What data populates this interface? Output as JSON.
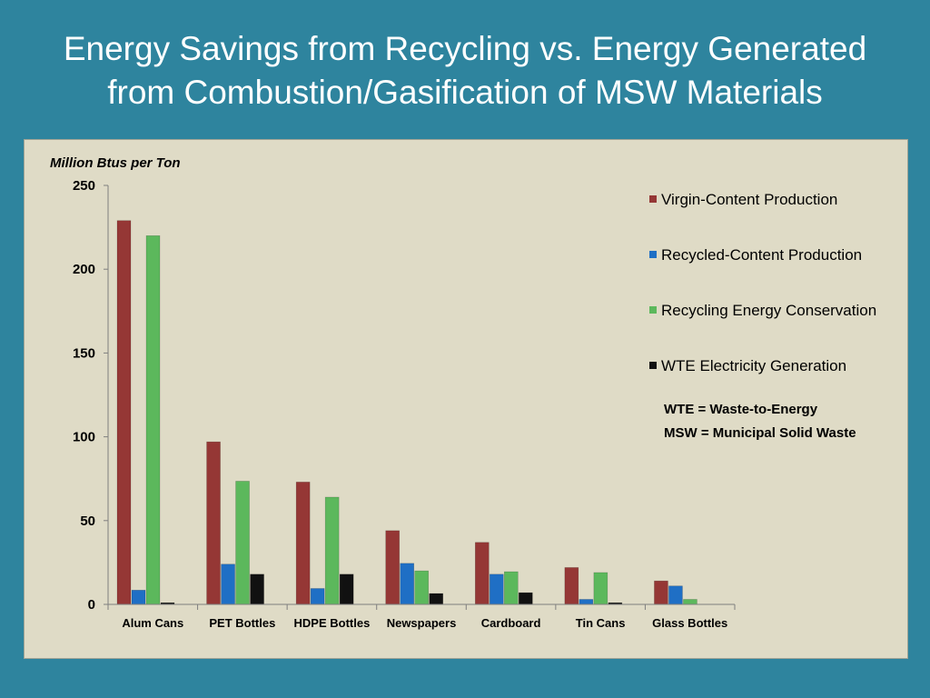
{
  "slide": {
    "title_line1": "Energy Savings from Recycling vs. Energy Generated",
    "title_line2": "from Combustion/Gasification of MSW Materials"
  },
  "colors": {
    "background": "#2e849e",
    "panel": "#dfdbc6"
  },
  "chart_data": {
    "type": "bar",
    "unit_label": "Million Btus per Ton",
    "categories": [
      "Alum Cans",
      "PET Bottles",
      "HDPE Bottles",
      "Newspapers",
      "Cardboard",
      "Tin Cans",
      "Glass Bottles"
    ],
    "series": [
      {
        "name": "Virgin-Content Production",
        "color": "#953735",
        "values": [
          229,
          97,
          73,
          44,
          37,
          22,
          14
        ]
      },
      {
        "name": "Recycled-Content Production",
        "color": "#1f6fc5",
        "values": [
          8.5,
          24,
          9.5,
          24.5,
          18,
          3,
          11
        ]
      },
      {
        "name": "Recycling Energy Conservation",
        "color": "#5cb85c",
        "values": [
          220,
          73.5,
          64,
          20,
          19.5,
          19,
          3
        ]
      },
      {
        "name": "WTE Electricity Generation",
        "color": "#111111",
        "values": [
          1,
          18,
          18,
          6.5,
          7,
          1,
          0
        ]
      }
    ],
    "ylim": [
      0,
      250
    ],
    "yticks": [
      0,
      50,
      100,
      150,
      200,
      250
    ],
    "grid": false,
    "legend_position": "right",
    "notes": [
      "WTE = Waste-to-Energy",
      "MSW = Municipal Solid Waste"
    ]
  }
}
